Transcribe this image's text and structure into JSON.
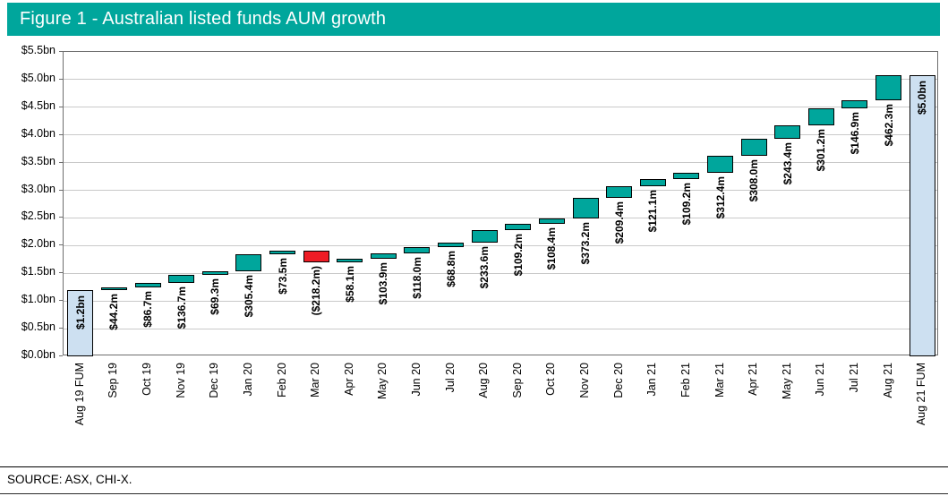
{
  "figure": {
    "title": "Figure 1 - Australian listed funds AUM growth",
    "source": "SOURCE: ASX, CHI-X."
  },
  "colors": {
    "title_bg": "#00A69C",
    "title_text": "#FFFFFF",
    "bar_up": "#00A69C",
    "bar_down": "#EE1C25",
    "bar_total": "#CDE0F1",
    "bar_border": "#000000",
    "gridline": "#C9C9C9",
    "plot_border": "#6E6E6E"
  },
  "chart_data": {
    "type": "bar",
    "subtype": "waterfall",
    "title": "Figure 1 - Australian listed funds AUM growth",
    "xlabel": "",
    "ylabel": "",
    "ylim_m": [
      0,
      5500
    ],
    "grid": true,
    "legend": false,
    "y_ticks": [
      {
        "label": "$0.0bn",
        "value_m": 0
      },
      {
        "label": "$0.5bn",
        "value_m": 500
      },
      {
        "label": "$1.0bn",
        "value_m": 1000
      },
      {
        "label": "$1.5bn",
        "value_m": 1500
      },
      {
        "label": "$2.0bn",
        "value_m": 2000
      },
      {
        "label": "$2.5bn",
        "value_m": 2500
      },
      {
        "label": "$3.0bn",
        "value_m": 3000
      },
      {
        "label": "$3.5bn",
        "value_m": 3500
      },
      {
        "label": "$4.0bn",
        "value_m": 4000
      },
      {
        "label": "$4.5bn",
        "value_m": 4500
      },
      {
        "label": "$5.0bn",
        "value_m": 5000
      },
      {
        "label": "$5.5bn",
        "value_m": 5500
      }
    ],
    "bars": [
      {
        "category": "Aug 19 FUM",
        "label": "$1.2bn",
        "kind": "total",
        "value_m": 1200
      },
      {
        "category": "Sep 19",
        "label": "$44.2m",
        "kind": "up",
        "value_m": 44.2
      },
      {
        "category": "Oct 19",
        "label": "$86.7m",
        "kind": "up",
        "value_m": 86.7
      },
      {
        "category": "Nov 19",
        "label": "$136.7m",
        "kind": "up",
        "value_m": 136.7
      },
      {
        "category": "Dec 19",
        "label": "$69.3m",
        "kind": "up",
        "value_m": 69.3
      },
      {
        "category": "Jan 20",
        "label": "$305.4m",
        "kind": "up",
        "value_m": 305.4
      },
      {
        "category": "Feb 20",
        "label": "$73.5m",
        "kind": "up",
        "value_m": 73.5
      },
      {
        "category": "Mar 20",
        "label": "($218.2m)",
        "kind": "down",
        "value_m": -218.2
      },
      {
        "category": "Apr 20",
        "label": "$58.1m",
        "kind": "up",
        "value_m": 58.1
      },
      {
        "category": "May 20",
        "label": "$103.9m",
        "kind": "up",
        "value_m": 103.9
      },
      {
        "category": "Jun 20",
        "label": "$118.0m",
        "kind": "up",
        "value_m": 118.0
      },
      {
        "category": "Jul 20",
        "label": "$68.8m",
        "kind": "up",
        "value_m": 68.8
      },
      {
        "category": "Aug 20",
        "label": "$233.6m",
        "kind": "up",
        "value_m": 233.6
      },
      {
        "category": "Sep 20",
        "label": "$109.2m",
        "kind": "up",
        "value_m": 109.2
      },
      {
        "category": "Oct 20",
        "label": "$108.4m",
        "kind": "up",
        "value_m": 108.4
      },
      {
        "category": "Nov 20",
        "label": "$373.2m",
        "kind": "up",
        "value_m": 373.2
      },
      {
        "category": "Dec 20",
        "label": "$209.4m",
        "kind": "up",
        "value_m": 209.4
      },
      {
        "category": "Jan 21",
        "label": "$121.1m",
        "kind": "up",
        "value_m": 121.1
      },
      {
        "category": "Feb 21",
        "label": "$109.2m",
        "kind": "up",
        "value_m": 109.2
      },
      {
        "category": "Mar 21",
        "label": "$312.4m",
        "kind": "up",
        "value_m": 312.4
      },
      {
        "category": "Apr 21",
        "label": "$308.0m",
        "kind": "up",
        "value_m": 308.0
      },
      {
        "category": "May 21",
        "label": "$243.4m",
        "kind": "up",
        "value_m": 243.4
      },
      {
        "category": "Jun 21",
        "label": "$301.2m",
        "kind": "up",
        "value_m": 301.2
      },
      {
        "category": "Jul 21",
        "label": "$146.9m",
        "kind": "up",
        "value_m": 146.9
      },
      {
        "category": "Aug 21",
        "label": "$462.3m",
        "kind": "up",
        "value_m": 462.3
      },
      {
        "category": "Aug 21 FUM",
        "label": "$5.0bn",
        "kind": "total",
        "value_m": null
      }
    ]
  }
}
